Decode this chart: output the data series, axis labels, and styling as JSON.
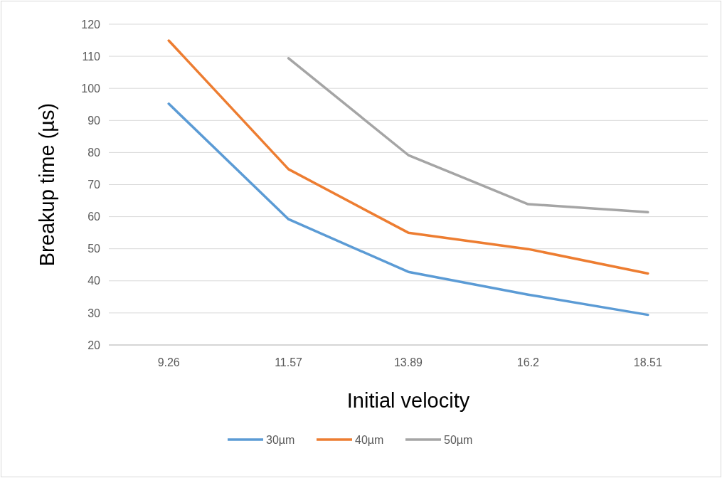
{
  "chart_data": {
    "type": "line",
    "xlabel": "Initial velocity",
    "ylabel": "Breakup time (µs)",
    "categories": [
      "9.26",
      "11.57",
      "13.89",
      "16.2",
      "18.51"
    ],
    "series": [
      {
        "name": "30µm",
        "color": "#5b9bd5",
        "values": [
          95.2,
          59.2,
          42.8,
          35.7,
          29.4
        ]
      },
      {
        "name": "40µm",
        "color": "#ed7d31",
        "values": [
          114.9,
          74.8,
          55,
          49.9,
          42.3
        ]
      },
      {
        "name": "50µm",
        "color": "#a5a5a5",
        "values": [
          null,
          109.4,
          79.2,
          63.9,
          61.4
        ]
      }
    ],
    "ylim": [
      20,
      120
    ],
    "yticks": [
      20,
      30,
      40,
      50,
      60,
      70,
      80,
      90,
      100,
      110,
      120
    ],
    "grid": "y",
    "legend": "bottom",
    "marker": "none",
    "line_style": "solid"
  }
}
